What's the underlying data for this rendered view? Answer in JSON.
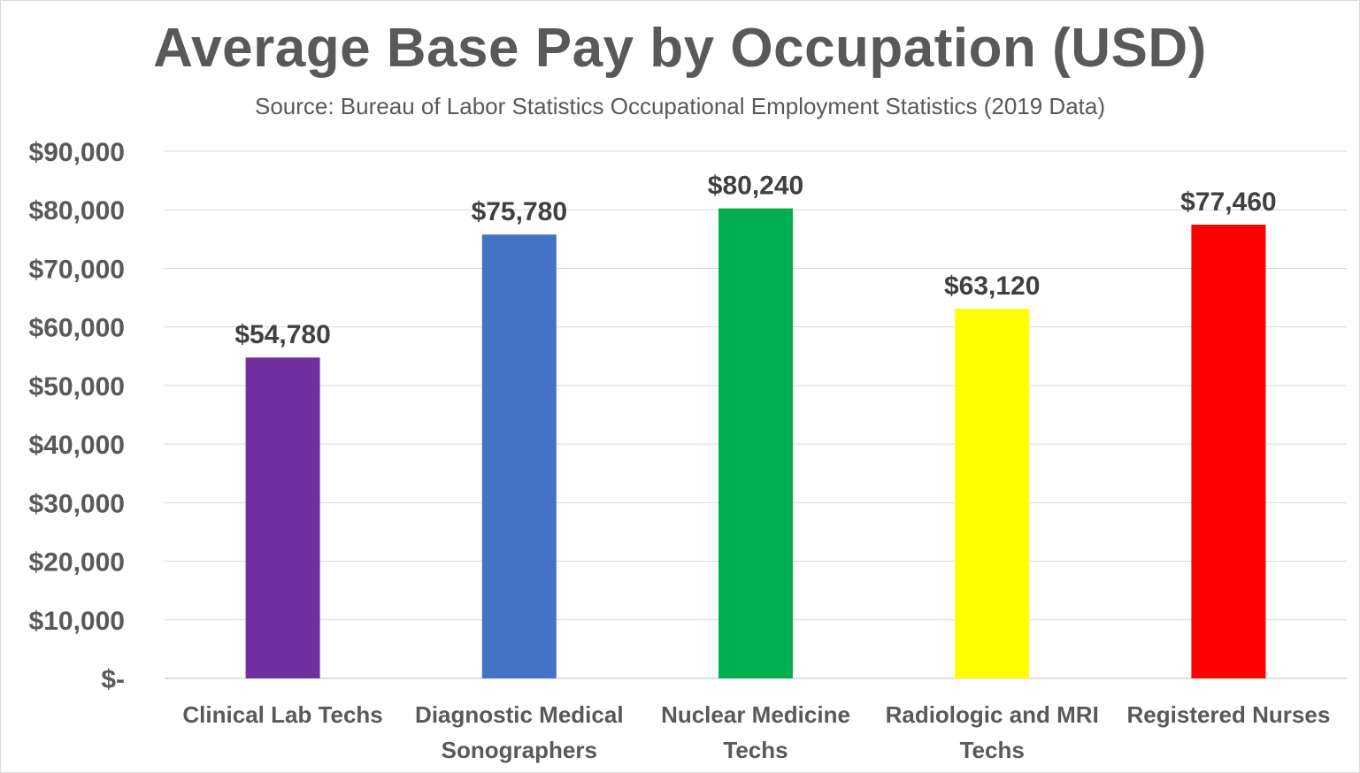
{
  "chart_data": {
    "type": "bar",
    "title": "Average Base Pay by Occupation (USD)",
    "subtitle": "Source: Bureau of Labor Statistics Occupational Employment Statistics (2019 Data)",
    "categories": [
      [
        "Clinical Lab Techs"
      ],
      [
        "Diagnostic Medical",
        "Sonographers"
      ],
      [
        "Nuclear Medicine",
        "Techs"
      ],
      [
        "Radiologic and MRI",
        "Techs"
      ],
      [
        "Registered Nurses"
      ]
    ],
    "values": [
      54780,
      75780,
      80240,
      63120,
      77460
    ],
    "data_labels": [
      "$54,780",
      "$75,780",
      "$80,240",
      "$63,120",
      "$77,460"
    ],
    "colors": [
      "#7030a0",
      "#4472c4",
      "#00b050",
      "#ffff00",
      "#ff0000"
    ],
    "ylim": [
      0,
      90000
    ],
    "yticks": [
      0,
      10000,
      20000,
      30000,
      40000,
      50000,
      60000,
      70000,
      80000,
      90000
    ],
    "ytick_labels": [
      "$-",
      "$10,000",
      "$20,000",
      "$30,000",
      "$40,000",
      "$50,000",
      "$60,000",
      "$70,000",
      "$80,000",
      "$90,000"
    ],
    "grid": true,
    "legend": "none"
  }
}
